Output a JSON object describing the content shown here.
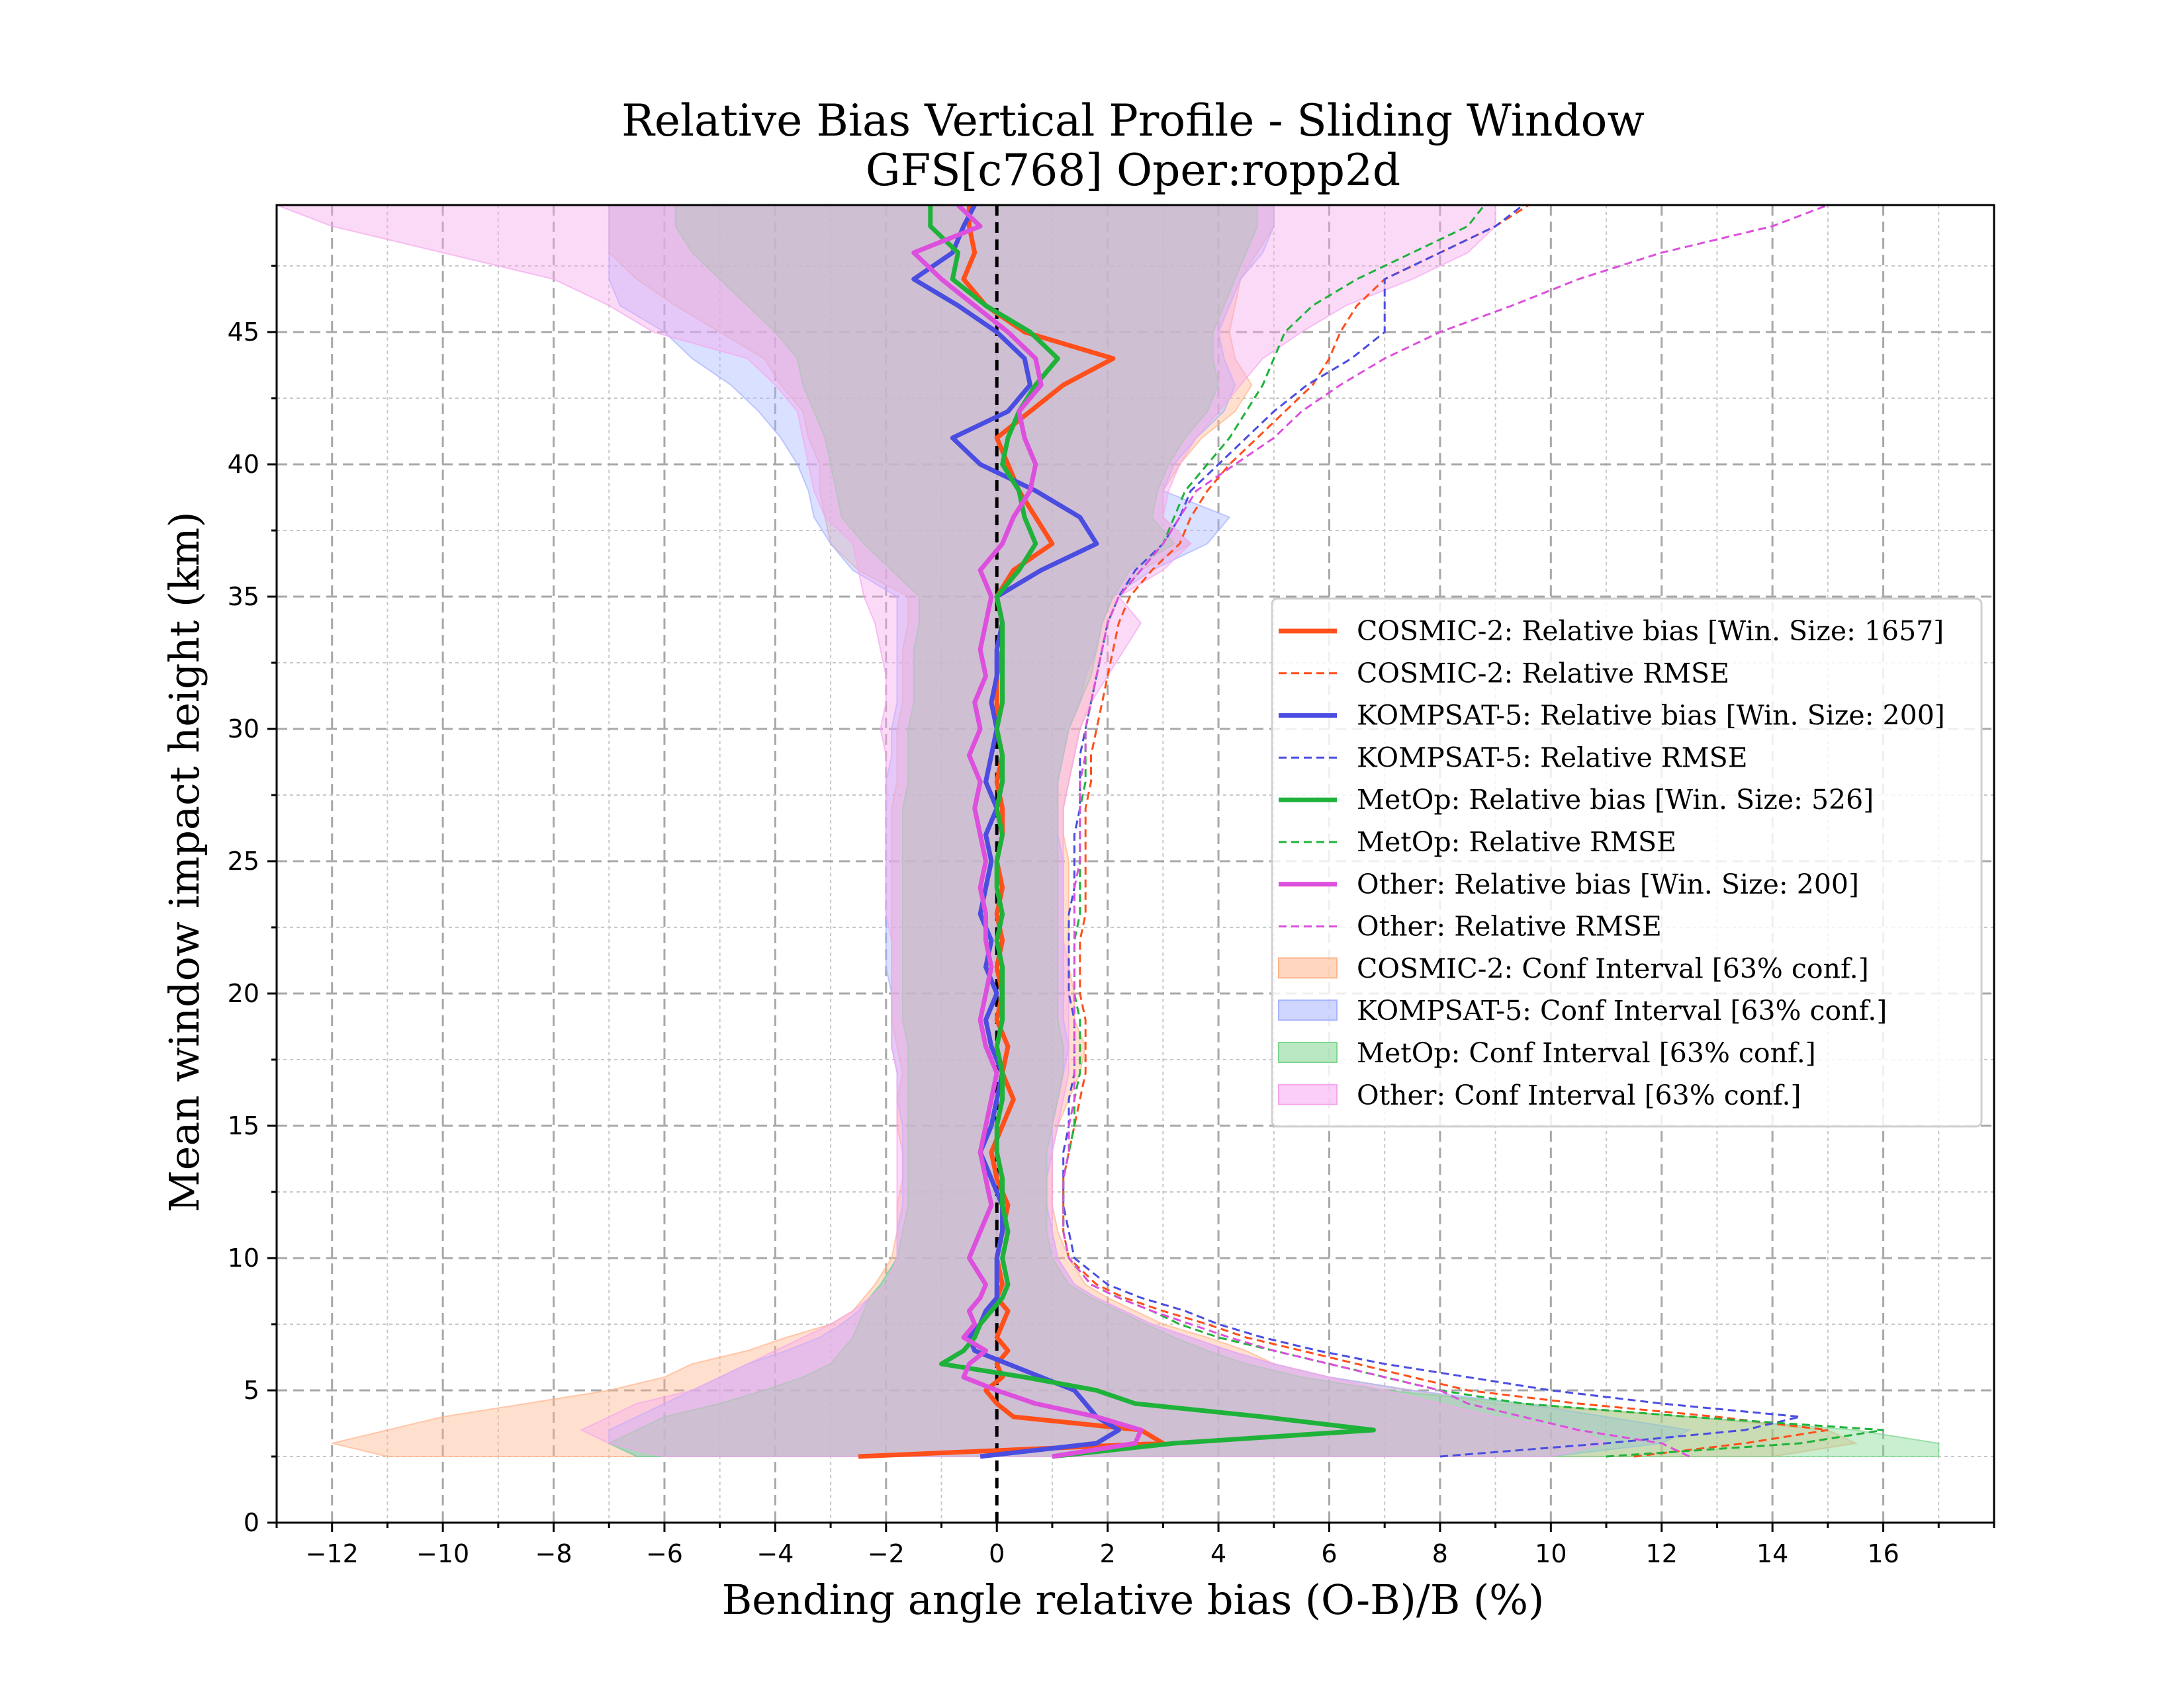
{
  "chart_data": {
    "type": "line",
    "title": "Relative Bias Vertical Profile - Sliding Window",
    "subtitle": "GFS[c768] Oper:ropp2d",
    "xlabel": "Bending angle relative bias (O-B)/B (%)",
    "ylabel": "Mean window impact height (km)",
    "xlim": [
      -13,
      18
    ],
    "ylim": [
      0,
      49.8
    ],
    "x_ticks": [
      -12,
      -10,
      -8,
      -6,
      -4,
      -2,
      0,
      2,
      4,
      6,
      8,
      10,
      12,
      14,
      16
    ],
    "y_ticks": [
      0,
      5,
      10,
      15,
      20,
      25,
      30,
      35,
      40,
      45
    ],
    "grid": true,
    "zero_line": 0,
    "legend_position": "center-right",
    "colors": {
      "cosmic2": "#ff4f1a",
      "kompsat5": "#4a4de0",
      "metop": "#1fb23a",
      "other": "#dd4fdd",
      "cosmic2_band": "#ffb58c",
      "kompsat5_band": "#a8b4ff",
      "metop_band": "#7fd690",
      "other_band": "#f5a6ee"
    },
    "legend": [
      {
        "label": "COSMIC-2: Relative bias [Win. Size: 1657]",
        "color": "#ff4f1a",
        "style": "solid"
      },
      {
        "label": "COSMIC-2: Relative RMSE",
        "color": "#ff4f1a",
        "style": "dashed"
      },
      {
        "label": "KOMPSAT-5: Relative bias [Win. Size: 200]",
        "color": "#4a4de0",
        "style": "solid"
      },
      {
        "label": "KOMPSAT-5: Relative RMSE",
        "color": "#4a4de0",
        "style": "dashed"
      },
      {
        "label": "MetOp: Relative bias [Win. Size: 526]",
        "color": "#1fb23a",
        "style": "solid"
      },
      {
        "label": "MetOp: Relative RMSE",
        "color": "#1fb23a",
        "style": "dashed"
      },
      {
        "label": "Other: Relative bias [Win. Size: 200]",
        "color": "#dd4fdd",
        "style": "solid"
      },
      {
        "label": "Other: Relative RMSE",
        "color": "#dd4fdd",
        "style": "dashed"
      },
      {
        "label": "COSMIC-2: Conf Interval [63% conf.]",
        "color": "#ffb58c",
        "style": "band"
      },
      {
        "label": "KOMPSAT-5: Conf Interval [63% conf.]",
        "color": "#a8b4ff",
        "style": "band"
      },
      {
        "label": "MetOp: Conf Interval [63% conf.]",
        "color": "#7fd690",
        "style": "band"
      },
      {
        "label": "Other: Conf Interval [63% conf.]",
        "color": "#f5a6ee",
        "style": "band"
      }
    ],
    "heights_km": [
      2.5,
      3.0,
      3.5,
      4.0,
      4.5,
      5.0,
      5.5,
      6.0,
      6.5,
      7.0,
      7.5,
      8.0,
      8.5,
      9.0,
      10.0,
      11.0,
      12.0,
      13.0,
      14.0,
      15.0,
      16.0,
      17.0,
      18.0,
      19.0,
      20.0,
      21.0,
      22.0,
      23.0,
      24.0,
      25.0,
      26.0,
      27.0,
      28.0,
      29.0,
      30.0,
      31.0,
      32.0,
      33.0,
      34.0,
      35.0,
      36.0,
      37.0,
      38.0,
      39.0,
      40.0,
      41.0,
      42.0,
      43.0,
      44.0,
      45.0,
      46.0,
      47.0,
      48.0,
      49.0,
      49.8
    ],
    "series": [
      {
        "name": "COSMIC-2",
        "bias": [
          -2.5,
          3.0,
          2.6,
          0.3,
          0.0,
          -0.2,
          0.1,
          0.0,
          0.2,
          0.0,
          0.1,
          0.2,
          0.0,
          0.1,
          0.0,
          0.1,
          0.2,
          0.0,
          -0.1,
          0.1,
          0.3,
          0.1,
          0.2,
          0.0,
          0.1,
          0.0,
          0.1,
          0.0,
          0.1,
          0.0,
          0.1,
          0.1,
          0.0,
          0.1,
          0.0,
          0.0,
          0.0,
          0.1,
          0.1,
          0.0,
          0.3,
          1.0,
          0.7,
          0.4,
          0.2,
          0.0,
          0.6,
          1.2,
          2.1,
          0.5,
          -0.2,
          -0.6,
          -0.4,
          -0.5,
          -0.5
        ],
        "rmse": [
          11.5,
          13.5,
          15.0,
          13.0,
          10.5,
          8.5,
          7.5,
          6.5,
          5.5,
          4.5,
          3.8,
          3.0,
          2.3,
          1.8,
          1.3,
          1.2,
          1.2,
          1.2,
          1.3,
          1.4,
          1.5,
          1.6,
          1.6,
          1.6,
          1.5,
          1.5,
          1.5,
          1.6,
          1.6,
          1.6,
          1.6,
          1.6,
          1.7,
          1.7,
          1.8,
          1.9,
          2.0,
          2.1,
          2.2,
          2.4,
          2.8,
          3.3,
          3.5,
          3.8,
          4.2,
          4.7,
          5.2,
          5.7,
          6.0,
          6.2,
          6.5,
          7.0,
          8.0,
          9.0,
          9.6
        ],
        "conf_lo": [
          -11,
          -12,
          -11,
          -10,
          -8.5,
          -7.0,
          -6.0,
          -5.5,
          -4.5,
          -3.8,
          -3.0,
          -2.6,
          -2.4,
          -2.2,
          -1.9,
          -1.8,
          -1.8,
          -1.7,
          -1.7,
          -1.8,
          -1.8,
          -1.7,
          -1.8,
          -1.9,
          -1.9,
          -1.9,
          -1.9,
          -1.9,
          -1.9,
          -1.9,
          -1.9,
          -1.9,
          -1.8,
          -1.8,
          -1.8,
          -1.7,
          -1.7,
          -1.7,
          -1.6,
          -1.6,
          -2.5,
          -3.0,
          -3.1,
          -3.2,
          -3.2,
          -3.4,
          -3.5,
          -3.9,
          -4.2,
          -5.0,
          -5.8,
          -6.5,
          -7.0,
          -7.0,
          -7.0
        ],
        "conf_hi": [
          14.0,
          15.5,
          15.0,
          12.5,
          9.0,
          7.5,
          6.0,
          5.0,
          4.5,
          3.8,
          3.0,
          2.5,
          2.0,
          1.6,
          1.3,
          1.1,
          1.0,
          1.0,
          1.0,
          1.1,
          1.3,
          1.5,
          1.6,
          1.4,
          1.4,
          1.3,
          1.3,
          1.3,
          1.3,
          1.3,
          1.2,
          1.2,
          1.3,
          1.4,
          1.5,
          1.7,
          1.8,
          1.9,
          2.0,
          2.2,
          2.6,
          3.5,
          3.0,
          3.0,
          3.3,
          3.7,
          4.3,
          4.6,
          4.3,
          4.2,
          4.3,
          4.4,
          4.7,
          5.0,
          5.0
        ]
      },
      {
        "name": "KOMPSAT-5",
        "bias": [
          -0.3,
          1.8,
          2.2,
          1.8,
          1.6,
          1.4,
          0.8,
          0.2,
          -0.4,
          -0.5,
          -0.3,
          -0.2,
          0.0,
          0.0,
          0.0,
          0.1,
          0.1,
          -0.1,
          -0.3,
          -0.1,
          0.0,
          0.1,
          -0.1,
          -0.2,
          0.0,
          -0.2,
          -0.1,
          -0.3,
          -0.2,
          -0.1,
          -0.2,
          0.0,
          -0.2,
          -0.1,
          0.0,
          -0.1,
          0.0,
          0.0,
          0.1,
          0.0,
          0.8,
          1.8,
          1.5,
          0.7,
          -0.3,
          -0.8,
          0.2,
          0.6,
          0.5,
          0.0,
          -0.7,
          -1.5,
          -0.8,
          -0.6,
          -0.4
        ],
        "rmse": [
          8.0,
          11.0,
          13.5,
          14.5,
          12.0,
          10.0,
          8.5,
          7.0,
          5.8,
          4.8,
          4.0,
          3.4,
          2.6,
          2.0,
          1.4,
          1.3,
          1.2,
          1.2,
          1.2,
          1.3,
          1.3,
          1.4,
          1.4,
          1.4,
          1.3,
          1.3,
          1.3,
          1.3,
          1.4,
          1.4,
          1.4,
          1.5,
          1.5,
          1.5,
          1.6,
          1.7,
          1.8,
          1.9,
          2.0,
          2.2,
          2.5,
          3.0,
          3.3,
          3.5,
          4.0,
          4.5,
          5.0,
          5.6,
          6.4,
          7.0,
          7.0,
          7.0,
          8.0,
          9.0,
          9.5
        ],
        "conf_lo": [
          -6.5,
          -7.0,
          -7.0,
          -6.5,
          -6.0,
          -5.5,
          -5.0,
          -4.5,
          -3.8,
          -3.2,
          -2.8,
          -2.5,
          -2.3,
          -2.1,
          -1.8,
          -1.8,
          -1.7,
          -1.7,
          -1.7,
          -1.7,
          -1.8,
          -1.8,
          -1.9,
          -1.9,
          -1.9,
          -2.0,
          -2.0,
          -2.0,
          -2.0,
          -2.0,
          -2.0,
          -2.0,
          -2.0,
          -1.9,
          -1.9,
          -1.8,
          -1.8,
          -1.8,
          -1.8,
          -1.8,
          -2.6,
          -3.0,
          -3.3,
          -3.4,
          -3.6,
          -3.9,
          -4.3,
          -4.8,
          -5.5,
          -6.0,
          -6.8,
          -7.0,
          -7.0,
          -7.0,
          -7.0
        ],
        "conf_hi": [
          10.0,
          12.0,
          12.5,
          11.0,
          9.5,
          7.5,
          6.0,
          5.0,
          4.2,
          3.5,
          2.8,
          2.3,
          1.8,
          1.4,
          1.1,
          1.0,
          0.9,
          0.9,
          1.0,
          1.0,
          1.1,
          1.2,
          1.3,
          1.2,
          1.2,
          1.2,
          1.2,
          1.2,
          1.2,
          1.2,
          1.1,
          1.1,
          1.1,
          1.2,
          1.3,
          1.5,
          1.6,
          1.8,
          1.9,
          2.1,
          2.8,
          3.8,
          4.2,
          3.0,
          3.2,
          3.6,
          4.1,
          4.3,
          4.1,
          4.0,
          4.2,
          4.4,
          4.8,
          5.0,
          5.0
        ],
        "note_lo_extra": []
      },
      {
        "name": "MetOp",
        "bias": [
          1.0,
          3.2,
          6.8,
          4.8,
          2.5,
          1.8,
          0.5,
          -1.0,
          -0.6,
          -0.4,
          -0.3,
          -0.1,
          0.1,
          0.2,
          0.1,
          0.2,
          0.1,
          0.1,
          0.0,
          0.0,
          0.1,
          0.1,
          0.0,
          0.1,
          0.1,
          0.1,
          0.0,
          0.1,
          0.0,
          0.0,
          0.1,
          0.0,
          0.1,
          0.1,
          0.0,
          0.1,
          0.1,
          0.1,
          0.1,
          0.0,
          0.4,
          0.7,
          0.5,
          0.4,
          0.1,
          0.2,
          0.4,
          0.7,
          1.1,
          0.6,
          -0.2,
          -0.8,
          -0.7,
          -1.2,
          -1.2
        ],
        "rmse": [
          11.0,
          14.5,
          16.0,
          12.5,
          9.5,
          8.0,
          7.0,
          6.0,
          5.0,
          4.0,
          3.3,
          2.8,
          2.2,
          1.7,
          1.3,
          1.2,
          1.2,
          1.2,
          1.3,
          1.4,
          1.4,
          1.5,
          1.5,
          1.5,
          1.4,
          1.4,
          1.4,
          1.5,
          1.5,
          1.5,
          1.5,
          1.5,
          1.6,
          1.6,
          1.6,
          1.7,
          1.8,
          1.9,
          2.0,
          2.2,
          2.6,
          3.0,
          3.2,
          3.4,
          3.8,
          4.2,
          4.5,
          4.8,
          5.0,
          5.2,
          5.7,
          6.5,
          7.5,
          8.5,
          8.8
        ],
        "conf_lo": [
          -6.5,
          -7.0,
          -6.5,
          -6.0,
          -5.0,
          -4.2,
          -3.5,
          -3.0,
          -2.8,
          -2.6,
          -2.5,
          -2.4,
          -2.3,
          -2.1,
          -1.8,
          -1.7,
          -1.6,
          -1.6,
          -1.6,
          -1.6,
          -1.6,
          -1.6,
          -1.6,
          -1.7,
          -1.7,
          -1.7,
          -1.7,
          -1.7,
          -1.7,
          -1.7,
          -1.7,
          -1.7,
          -1.6,
          -1.6,
          -1.6,
          -1.5,
          -1.5,
          -1.5,
          -1.4,
          -1.4,
          -1.9,
          -2.4,
          -2.8,
          -2.9,
          -3.0,
          -3.1,
          -3.3,
          -3.5,
          -3.6,
          -4.0,
          -4.5,
          -5.0,
          -5.5,
          -5.8,
          -5.8
        ],
        "conf_hi": [
          17.0,
          17.0,
          15.5,
          12.5,
          9.5,
          7.0,
          5.5,
          4.5,
          3.8,
          3.2,
          2.7,
          2.2,
          1.7,
          1.3,
          1.0,
          0.9,
          0.9,
          0.9,
          0.9,
          1.0,
          1.1,
          1.2,
          1.2,
          1.1,
          1.1,
          1.1,
          1.1,
          1.1,
          1.1,
          1.1,
          1.1,
          1.1,
          1.1,
          1.2,
          1.3,
          1.5,
          1.7,
          1.8,
          1.9,
          2.1,
          2.4,
          3.2,
          2.8,
          2.9,
          3.1,
          3.4,
          3.8,
          4.0,
          3.9,
          3.9,
          4.1,
          4.3,
          4.5,
          4.7,
          4.7
        ]
      },
      {
        "name": "Other",
        "bias": [
          1.0,
          2.5,
          2.6,
          1.8,
          0.7,
          0.0,
          -0.6,
          -0.5,
          -0.2,
          -0.6,
          -0.4,
          -0.5,
          -0.3,
          -0.2,
          -0.5,
          -0.3,
          -0.1,
          -0.2,
          -0.3,
          -0.2,
          -0.1,
          0.0,
          -0.2,
          -0.3,
          -0.2,
          -0.1,
          -0.2,
          -0.2,
          -0.3,
          -0.2,
          -0.3,
          -0.4,
          -0.3,
          -0.5,
          -0.3,
          -0.4,
          -0.2,
          -0.3,
          -0.2,
          -0.1,
          -0.3,
          0.1,
          0.3,
          0.6,
          0.7,
          0.5,
          0.4,
          0.8,
          0.7,
          0.2,
          -0.4,
          -1.0,
          -1.5,
          -0.3,
          -0.7
        ],
        "rmse": [
          12.5,
          12.0,
          10.5,
          9.5,
          8.5,
          8.0,
          7.0,
          6.0,
          5.0,
          4.2,
          3.5,
          2.8,
          2.2,
          1.7,
          1.3,
          1.2,
          1.2,
          1.2,
          1.3,
          1.3,
          1.4,
          1.4,
          1.4,
          1.4,
          1.4,
          1.4,
          1.4,
          1.4,
          1.4,
          1.5,
          1.5,
          1.5,
          1.5,
          1.6,
          1.6,
          1.7,
          1.8,
          1.9,
          2.0,
          2.2,
          2.6,
          3.0,
          3.3,
          3.6,
          4.3,
          5.0,
          5.5,
          6.2,
          7.0,
          8.0,
          9.3,
          10.5,
          12.0,
          14.0,
          15.0
        ],
        "conf_lo": [
          -6.0,
          -7.0,
          -7.5,
          -7.0,
          -6.5,
          -5.5,
          -5.0,
          -4.5,
          -4.0,
          -3.5,
          -3.0,
          -2.6,
          -2.3,
          -2.0,
          -1.8,
          -1.8,
          -1.8,
          -1.8,
          -1.8,
          -1.8,
          -1.8,
          -1.8,
          -1.9,
          -1.9,
          -1.9,
          -1.9,
          -1.9,
          -2.0,
          -2.0,
          -2.0,
          -2.0,
          -2.0,
          -2.0,
          -2.0,
          -2.1,
          -2.0,
          -2.0,
          -2.1,
          -2.2,
          -2.4,
          -2.5,
          -2.6,
          -3.1,
          -3.3,
          -3.4,
          -3.5,
          -3.6,
          -4.0,
          -4.5,
          -6.2,
          -7.0,
          -8.0,
          -10.0,
          -12.0,
          -13.0
        ],
        "conf_hi": [
          10.0,
          11.0,
          10.5,
          9.0,
          8.0,
          7.0,
          6.0,
          5.0,
          4.2,
          3.5,
          2.8,
          2.3,
          1.8,
          1.4,
          1.1,
          1.0,
          1.0,
          1.0,
          1.0,
          1.1,
          1.2,
          1.3,
          1.3,
          1.3,
          1.3,
          1.3,
          1.2,
          1.2,
          1.2,
          1.2,
          1.2,
          1.2,
          1.3,
          1.4,
          1.5,
          1.7,
          2.0,
          2.3,
          2.6,
          2.2,
          3.0,
          3.5,
          3.0,
          3.1,
          3.3,
          3.6,
          4.0,
          4.4,
          4.8,
          5.5,
          6.3,
          7.5,
          8.5,
          9.0,
          9.0
        ]
      }
    ]
  }
}
